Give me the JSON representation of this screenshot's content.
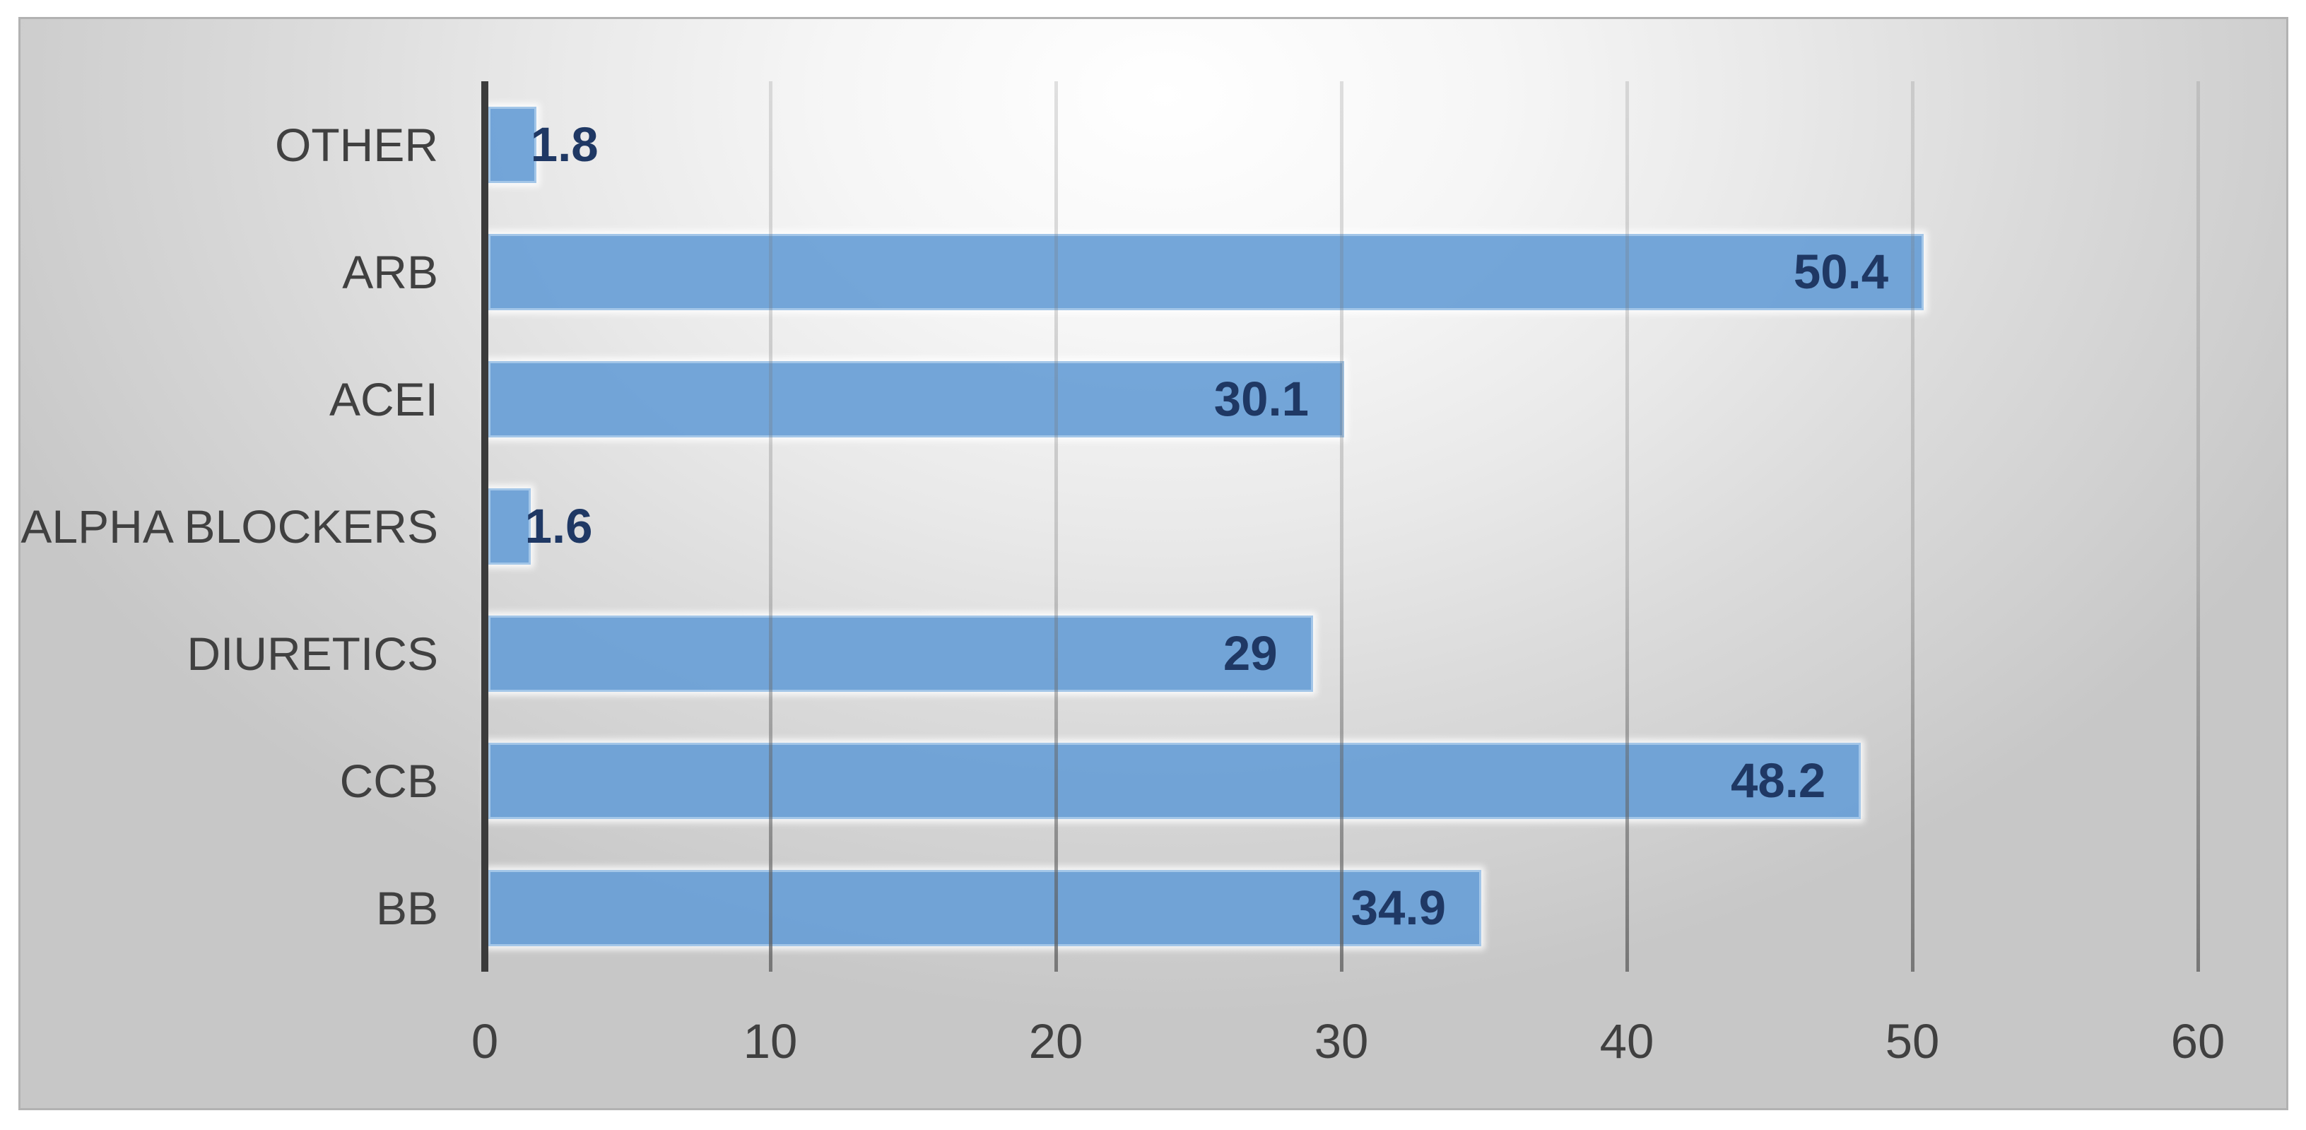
{
  "chart_data": {
    "type": "bar",
    "orientation": "horizontal",
    "title": "",
    "categories": [
      "OTHER",
      "ARB",
      "ACEI",
      "ALPHA BLOCKERS",
      "DIURETICS",
      "CCB",
      "BB"
    ],
    "values": [
      1.8,
      50.4,
      30.1,
      1.6,
      29,
      48.2,
      34.9
    ],
    "value_labels": [
      "1.8",
      "50.4",
      "30.1",
      "1.6",
      "29",
      "48.2",
      "34.9"
    ],
    "x_ticks": [
      "0",
      "10",
      "20",
      "30",
      "40",
      "50",
      "60"
    ],
    "x_tick_values": [
      0,
      10,
      20,
      30,
      40,
      50,
      60
    ],
    "xlim": [
      0,
      60
    ],
    "grid": true,
    "legend": "none",
    "colors": {
      "bar_fill": "#73a5d8",
      "bar_border": "#a3c6e8",
      "value_label": "#1f3864",
      "axis_text": "#404040",
      "axis_line": "#3b3b3b",
      "gridline": "#9a9a9a",
      "panel_border": "#b2b2b2",
      "background_center": "#ffffff",
      "background_edge": "#c7c7c7"
    }
  }
}
